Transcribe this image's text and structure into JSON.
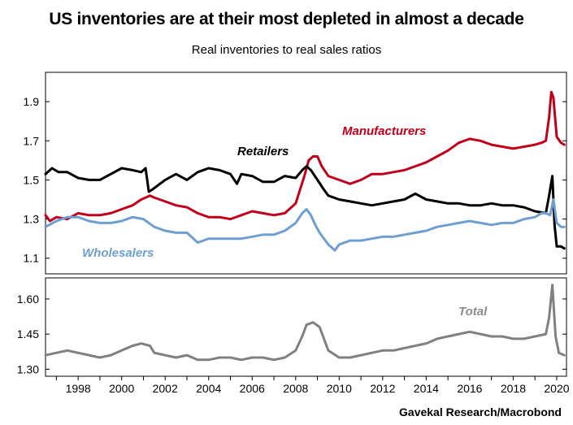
{
  "title": "US inventories are at their most depleted in almost a decade",
  "subtitle": "Real inventories to real sales ratios",
  "source": "Gavekal Research/Macrobond",
  "chart_data": [
    {
      "type": "line",
      "panel": "top",
      "ylim": [
        1.02,
        2.05
      ],
      "xlim": [
        1997.0,
        2020.95
      ],
      "yticks": [
        1.1,
        1.3,
        1.5,
        1.7,
        1.9
      ],
      "ytick_labels": [
        "1.1",
        "1.3",
        "1.5",
        "1.7",
        "1.9"
      ],
      "series": [
        {
          "name": "Manufacturers",
          "color": "#c0001a",
          "x": [
            1997.0,
            1997.2,
            1997.5,
            1998.0,
            1998.5,
            1999.0,
            1999.5,
            2000.0,
            2000.5,
            2001.0,
            2001.4,
            2001.8,
            2002.0,
            2002.5,
            2003.0,
            2003.5,
            2004.0,
            2004.5,
            2005.0,
            2005.5,
            2006.0,
            2006.5,
            2007.0,
            2007.5,
            2008.0,
            2008.5,
            2008.9,
            2009.1,
            2009.3,
            2009.5,
            2009.7,
            2010.0,
            2010.5,
            2011.0,
            2011.5,
            2012.0,
            2012.5,
            2013.0,
            2013.5,
            2014.0,
            2014.5,
            2015.0,
            2015.5,
            2016.0,
            2016.5,
            2017.0,
            2017.5,
            2018.0,
            2018.5,
            2019.0,
            2019.5,
            2019.8,
            2020.0,
            2020.15,
            2020.25,
            2020.35,
            2020.5,
            2020.7,
            2020.85
          ],
          "y": [
            1.32,
            1.29,
            1.31,
            1.3,
            1.33,
            1.32,
            1.32,
            1.33,
            1.35,
            1.37,
            1.4,
            1.42,
            1.41,
            1.39,
            1.37,
            1.36,
            1.33,
            1.31,
            1.31,
            1.3,
            1.32,
            1.34,
            1.33,
            1.32,
            1.33,
            1.38,
            1.52,
            1.6,
            1.62,
            1.62,
            1.57,
            1.52,
            1.5,
            1.48,
            1.5,
            1.53,
            1.53,
            1.54,
            1.55,
            1.57,
            1.59,
            1.62,
            1.65,
            1.69,
            1.71,
            1.7,
            1.68,
            1.67,
            1.66,
            1.67,
            1.68,
            1.69,
            1.7,
            1.82,
            1.95,
            1.92,
            1.72,
            1.69,
            1.68
          ]
        },
        {
          "name": "Retailers",
          "color": "#000000",
          "x": [
            1997.0,
            1997.3,
            1997.6,
            1998.0,
            1998.5,
            1999.0,
            1999.5,
            2000.0,
            2000.5,
            2001.0,
            2001.4,
            2001.6,
            2001.75,
            2001.9,
            2002.5,
            2003.0,
            2003.5,
            2004.0,
            2004.5,
            2005.0,
            2005.5,
            2005.8,
            2006.0,
            2006.5,
            2007.0,
            2007.5,
            2008.0,
            2008.5,
            2008.8,
            2009.0,
            2009.2,
            2009.5,
            2009.8,
            2010.0,
            2010.5,
            2011.0,
            2011.5,
            2012.0,
            2012.5,
            2013.0,
            2013.5,
            2014.0,
            2014.5,
            2015.0,
            2015.5,
            2016.0,
            2016.5,
            2017.0,
            2017.5,
            2018.0,
            2018.5,
            2019.0,
            2019.5,
            2020.0,
            2020.15,
            2020.3,
            2020.4,
            2020.5,
            2020.7,
            2020.85
          ],
          "y": [
            1.53,
            1.56,
            1.54,
            1.54,
            1.51,
            1.5,
            1.5,
            1.53,
            1.56,
            1.55,
            1.54,
            1.56,
            1.44,
            1.45,
            1.5,
            1.53,
            1.5,
            1.54,
            1.56,
            1.55,
            1.53,
            1.48,
            1.53,
            1.52,
            1.49,
            1.49,
            1.52,
            1.51,
            1.55,
            1.57,
            1.55,
            1.5,
            1.45,
            1.42,
            1.4,
            1.39,
            1.38,
            1.37,
            1.38,
            1.39,
            1.4,
            1.43,
            1.4,
            1.39,
            1.38,
            1.38,
            1.37,
            1.37,
            1.38,
            1.37,
            1.37,
            1.36,
            1.34,
            1.33,
            1.42,
            1.52,
            1.27,
            1.16,
            1.16,
            1.15
          ]
        },
        {
          "name": "Wholesalers",
          "color": "#6e9fd1",
          "x": [
            1997.0,
            1997.5,
            1998.0,
            1998.5,
            1999.0,
            1999.5,
            2000.0,
            2000.5,
            2001.0,
            2001.5,
            2002.0,
            2002.5,
            2003.0,
            2003.5,
            2004.0,
            2004.5,
            2005.0,
            2005.5,
            2006.0,
            2006.5,
            2007.0,
            2007.5,
            2008.0,
            2008.5,
            2008.8,
            2009.0,
            2009.2,
            2009.4,
            2009.6,
            2009.8,
            2010.0,
            2010.3,
            2010.5,
            2011.0,
            2011.5,
            2012.0,
            2012.5,
            2013.0,
            2013.5,
            2014.0,
            2014.5,
            2015.0,
            2015.5,
            2016.0,
            2016.5,
            2017.0,
            2017.5,
            2018.0,
            2018.5,
            2019.0,
            2019.5,
            2019.8,
            2020.0,
            2020.2,
            2020.35,
            2020.5,
            2020.7,
            2020.85
          ],
          "y": [
            1.26,
            1.29,
            1.31,
            1.31,
            1.29,
            1.28,
            1.28,
            1.29,
            1.31,
            1.3,
            1.26,
            1.24,
            1.23,
            1.23,
            1.18,
            1.2,
            1.2,
            1.2,
            1.2,
            1.21,
            1.22,
            1.22,
            1.24,
            1.28,
            1.33,
            1.35,
            1.32,
            1.27,
            1.23,
            1.2,
            1.17,
            1.14,
            1.17,
            1.19,
            1.19,
            1.2,
            1.21,
            1.21,
            1.22,
            1.23,
            1.24,
            1.26,
            1.27,
            1.28,
            1.29,
            1.28,
            1.27,
            1.28,
            1.28,
            1.3,
            1.31,
            1.33,
            1.33,
            1.32,
            1.4,
            1.28,
            1.26,
            1.26
          ]
        }
      ],
      "labels": [
        "Manufacturers",
        "Retailers",
        "Wholesalers"
      ]
    },
    {
      "type": "line",
      "panel": "bottom",
      "ylim": [
        1.27,
        1.69
      ],
      "xlim": [
        1997.0,
        2020.95
      ],
      "yticks": [
        1.3,
        1.45,
        1.6
      ],
      "ytick_labels": [
        "1.30",
        "1.45",
        "1.60"
      ],
      "xticks": [
        1998,
        2000,
        2002,
        2004,
        2006,
        2008,
        2010,
        2012,
        2014,
        2016,
        2018,
        2020
      ],
      "xtick_labels": [
        "1998",
        "2000",
        "2002",
        "2004",
        "2006",
        "2008",
        "2010",
        "2012",
        "2014",
        "2016",
        "2018",
        "2020"
      ],
      "series": [
        {
          "name": "Total",
          "color": "#808080",
          "x": [
            1997.0,
            1997.5,
            1998.0,
            1998.5,
            1999.0,
            1999.5,
            2000.0,
            2000.5,
            2001.0,
            2001.4,
            2001.8,
            2002.0,
            2002.5,
            2003.0,
            2003.5,
            2004.0,
            2004.5,
            2005.0,
            2005.5,
            2006.0,
            2006.5,
            2007.0,
            2007.5,
            2008.0,
            2008.5,
            2008.8,
            2009.0,
            2009.3,
            2009.6,
            2009.8,
            2010.0,
            2010.5,
            2011.0,
            2011.5,
            2012.0,
            2012.5,
            2013.0,
            2013.5,
            2014.0,
            2014.5,
            2015.0,
            2015.5,
            2016.0,
            2016.5,
            2017.0,
            2017.5,
            2018.0,
            2018.5,
            2019.0,
            2019.5,
            2020.0,
            2020.15,
            2020.3,
            2020.45,
            2020.6,
            2020.85
          ],
          "y": [
            1.36,
            1.37,
            1.38,
            1.37,
            1.36,
            1.35,
            1.36,
            1.38,
            1.4,
            1.41,
            1.4,
            1.37,
            1.36,
            1.35,
            1.36,
            1.34,
            1.34,
            1.35,
            1.35,
            1.34,
            1.35,
            1.35,
            1.34,
            1.35,
            1.38,
            1.44,
            1.49,
            1.5,
            1.48,
            1.43,
            1.38,
            1.35,
            1.35,
            1.36,
            1.37,
            1.38,
            1.38,
            1.39,
            1.4,
            1.41,
            1.43,
            1.44,
            1.45,
            1.46,
            1.45,
            1.44,
            1.44,
            1.43,
            1.43,
            1.44,
            1.45,
            1.52,
            1.66,
            1.44,
            1.37,
            1.36
          ]
        }
      ],
      "labels": [
        "Total"
      ]
    }
  ]
}
